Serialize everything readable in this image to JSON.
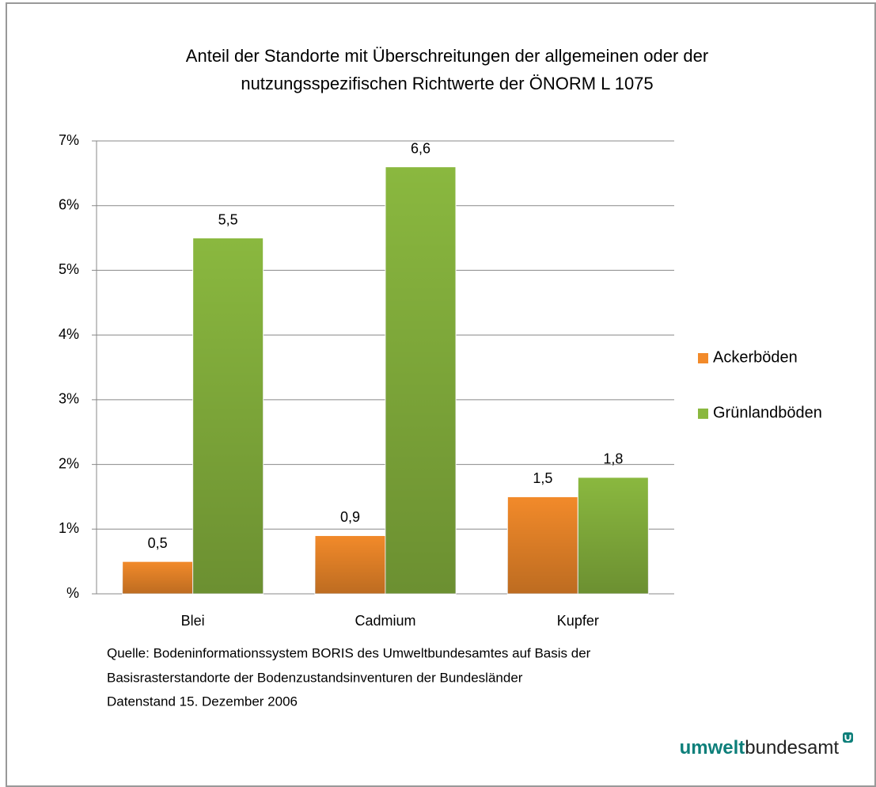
{
  "chart_data": {
    "type": "bar",
    "title": [
      "Anteil der Standorte mit Überschreitungen der allgemeinen oder der",
      "nutzungsspezifischen Richtwerte der ÖNORM L 1075"
    ],
    "categories": [
      "Blei",
      "Cadmium",
      "Kupfer"
    ],
    "series": [
      {
        "name": "Ackerböden",
        "color": "#f28a2a",
        "values": [
          0.5,
          0.9,
          1.5
        ],
        "value_labels": [
          "0,5",
          "0,9",
          "1,5"
        ]
      },
      {
        "name": "Grünlandböden",
        "color": "#8ab83f",
        "values": [
          5.5,
          6.6,
          1.8
        ],
        "value_labels": [
          "5,5",
          "6,6",
          "1,8"
        ]
      }
    ],
    "ylim": [
      0,
      7
    ],
    "yticks": [
      {
        "value": 0,
        "label": "%"
      },
      {
        "value": 1,
        "label": "1%"
      },
      {
        "value": 2,
        "label": "2%"
      },
      {
        "value": 3,
        "label": "3%"
      },
      {
        "value": 4,
        "label": "4%"
      },
      {
        "value": 5,
        "label": "5%"
      },
      {
        "value": 6,
        "label": "6%"
      },
      {
        "value": 7,
        "label": "7%"
      }
    ],
    "grid": true,
    "legend": "right",
    "source": [
      "Quelle: Bodeninformationssystem BORIS des Umweltbundesamtes auf Basis der",
      "Basisrasterstandorte der Bodenzustandsinventuren der Bundesländer",
      "Datenstand 15. Dezember 2006"
    ],
    "logo": [
      "umwelt",
      "bundesamt"
    ]
  }
}
